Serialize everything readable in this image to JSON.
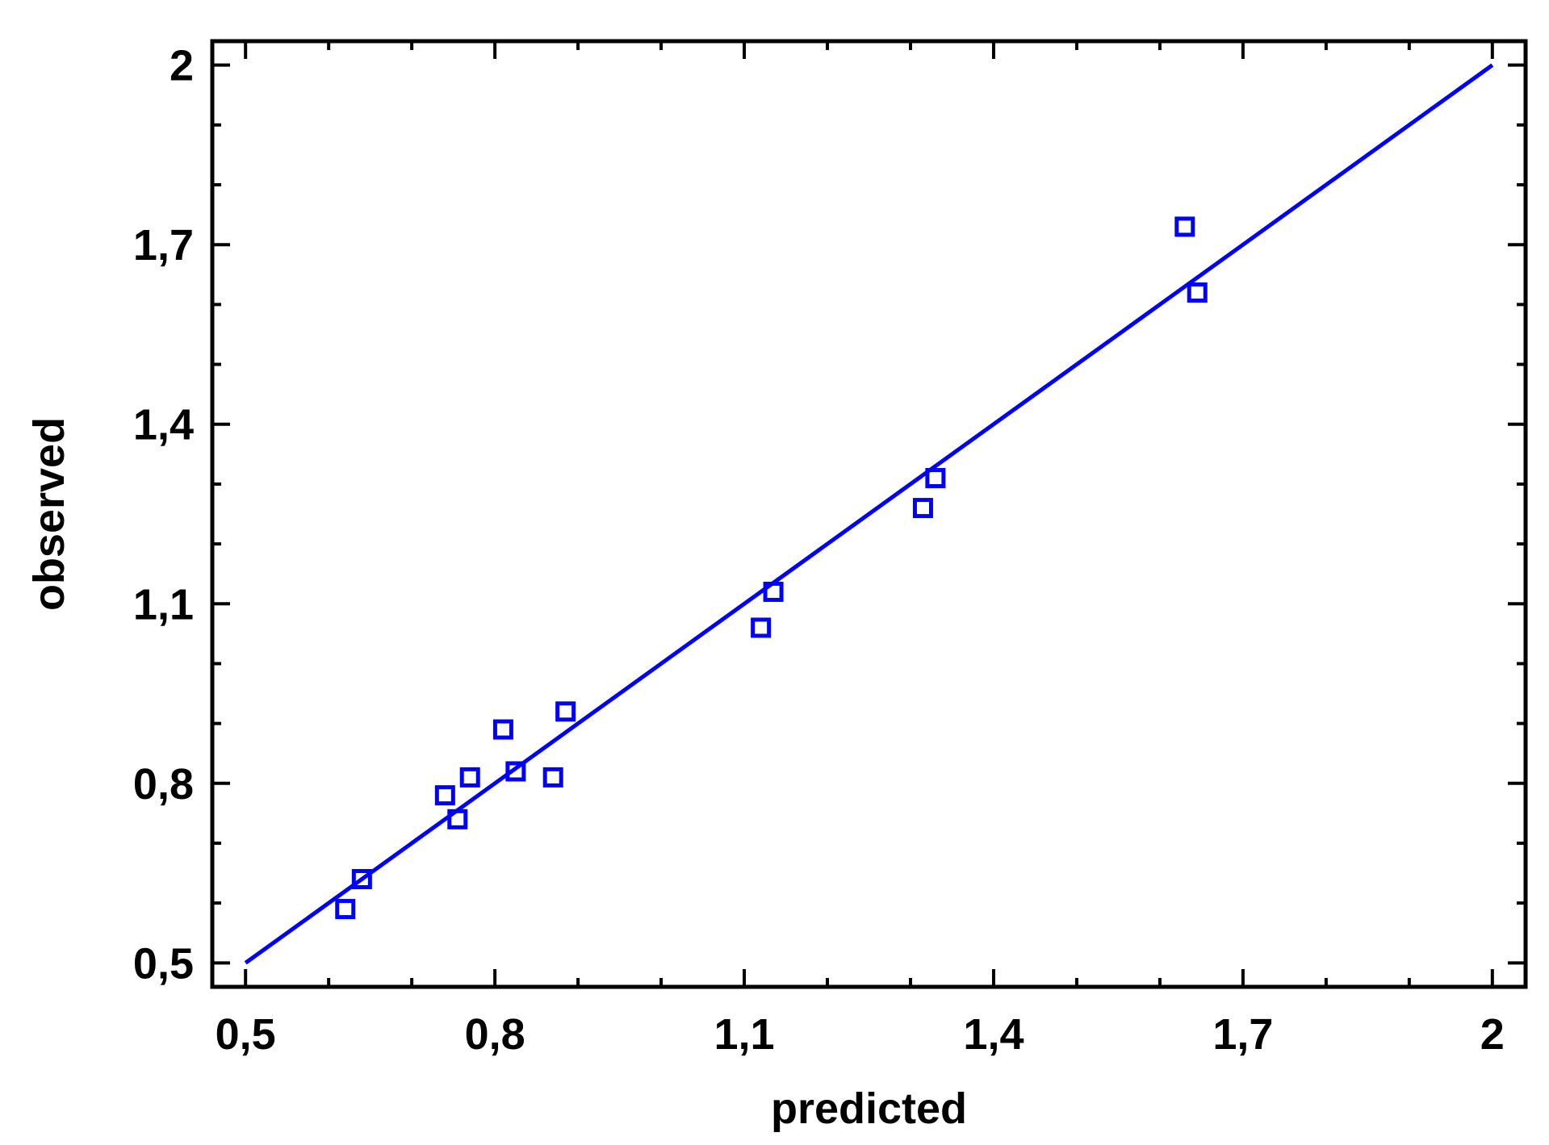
{
  "chart_data": {
    "type": "scatter",
    "title": "",
    "xlabel": "predicted",
    "ylabel": "observed",
    "xlim": [
      0.46,
      2.04
    ],
    "ylim": [
      0.46,
      2.04
    ],
    "x_ticks": [
      0.5,
      0.8,
      1.1,
      1.4,
      1.7,
      2.0
    ],
    "y_ticks": [
      0.5,
      0.8,
      1.1,
      1.4,
      1.7,
      2.0
    ],
    "x_tick_labels": [
      "0,5",
      "0,8",
      "1,1",
      "1,4",
      "1,7",
      "2"
    ],
    "y_tick_labels": [
      "0,5",
      "0,8",
      "1,1",
      "1,4",
      "1,7",
      "2"
    ],
    "grid": false,
    "series": [
      {
        "kind": "points",
        "marker": "open-square",
        "color": "#0000ff",
        "x": [
          0.62,
          0.64,
          0.74,
          0.755,
          0.77,
          0.81,
          0.825,
          0.87,
          0.885,
          1.12,
          1.135,
          1.315,
          1.33,
          1.63,
          1.645
        ],
        "y": [
          0.59,
          0.64,
          0.78,
          0.74,
          0.81,
          0.89,
          0.82,
          0.81,
          0.92,
          1.06,
          1.12,
          1.26,
          1.31,
          1.73,
          1.62
        ]
      },
      {
        "kind": "line",
        "color": "#0000ff",
        "x": [
          0.5,
          2.0
        ],
        "y": [
          0.5,
          2.0
        ]
      }
    ]
  }
}
